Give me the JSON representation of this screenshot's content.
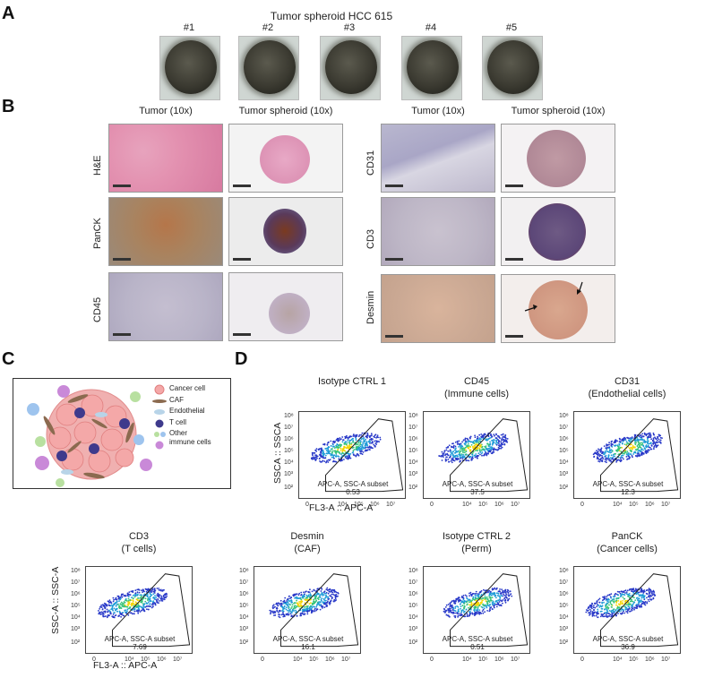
{
  "panelA": {
    "letter": "A",
    "title": "Tumor spheroid HCC 615",
    "labels": [
      "#1",
      "#2",
      "#3",
      "#4",
      "#5"
    ]
  },
  "panelB": {
    "letter": "B",
    "col_headers": [
      "Tumor (10x)",
      "Tumor spheroid (10x)",
      "Tumor (10x)",
      "Tumor spheroid (10x)"
    ],
    "rows_left": [
      "H&E",
      "PanCK",
      "CD45"
    ],
    "rows_right": [
      "CD31",
      "CD3",
      "Desmin"
    ]
  },
  "panelC": {
    "letter": "C",
    "legend": [
      "Cancer cell",
      "CAF",
      "Endothelial",
      "T cell",
      "Other",
      "immune cells"
    ],
    "colors": {
      "cancer": "#f2a6a6",
      "caf": "#8b6a4f",
      "endothelial": "#b8d4e8",
      "tcell": "#3e3a8c",
      "other_green": "#b8e0a0",
      "other_purple": "#c989d8",
      "other_blue": "#9ec4ee"
    }
  },
  "panelD": {
    "letter": "D",
    "gate_label": "APC-A, SSC-A subset",
    "y_axis_top": "SSCA :: SSCA",
    "y_axis_bottom": "SSC-A :: SSC-A",
    "x_axis": "FL3-A :: APC-A",
    "y_ticks": [
      "10⁸",
      "10⁷",
      "10⁶",
      "10⁵",
      "10⁴",
      "10³",
      "10²"
    ],
    "x_ticks": [
      "0",
      "10⁴",
      "10⁵",
      "10⁶",
      "10⁷"
    ],
    "plots": [
      {
        "title1": "Isotype CTRL 1",
        "title2": "",
        "value": "0.53"
      },
      {
        "title1": "CD45",
        "title2": "(Immune cells)",
        "value": "37.5"
      },
      {
        "title1": "CD31",
        "title2": "(Endothelial cells)",
        "value": "12.3"
      },
      {
        "title1": "CD3",
        "title2": "(T cells)",
        "value": "7.69"
      },
      {
        "title1": "Desmin",
        "title2": "(CAF)",
        "value": "16.1"
      },
      {
        "title1": "Isotype CTRL 2",
        "title2": "(Perm)",
        "value": "0.51"
      },
      {
        "title1": "PanCK",
        "title2": "(Cancer cells)",
        "value": "36.9"
      }
    ]
  }
}
